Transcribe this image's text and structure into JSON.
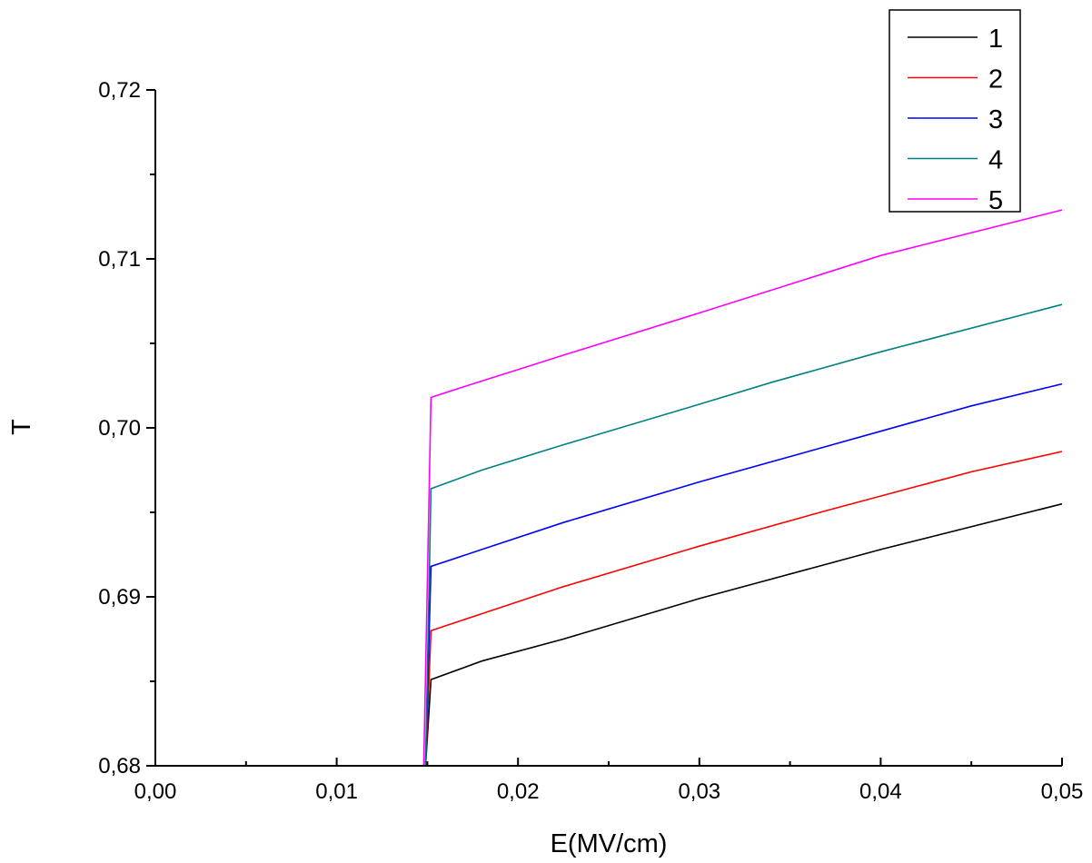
{
  "chart_data": {
    "type": "line",
    "title": "",
    "xlabel": "E(MV/cm)",
    "ylabel": "T",
    "xlim": [
      0.0,
      0.05
    ],
    "ylim": [
      0.68,
      0.72
    ],
    "x_ticks": [
      0.0,
      0.01,
      0.02,
      0.03,
      0.04,
      0.05
    ],
    "x_tick_labels": [
      "0,00",
      "0,01",
      "0,02",
      "0,03",
      "0,04",
      "0,05"
    ],
    "y_ticks": [
      0.68,
      0.69,
      0.7,
      0.71,
      0.72
    ],
    "y_tick_labels": [
      "0,68",
      "0,69",
      "0,70",
      "0,71",
      "0,72"
    ],
    "grid": false,
    "legend_position": "top-right",
    "series": [
      {
        "name": "1",
        "color": "#000000",
        "x": [
          0.0149,
          0.0152,
          0.018,
          0.0225,
          0.03,
          0.04,
          0.05
        ],
        "y": [
          0.68,
          0.6851,
          0.6862,
          0.6875,
          0.6899,
          0.6928,
          0.6955
        ]
      },
      {
        "name": "2",
        "color": "#ff0000",
        "x": [
          0.0149,
          0.0152,
          0.018,
          0.0225,
          0.03,
          0.037,
          0.045,
          0.05
        ],
        "y": [
          0.68,
          0.688,
          0.689,
          0.6906,
          0.693,
          0.6951,
          0.6974,
          0.6986
        ]
      },
      {
        "name": "3",
        "color": "#0000ff",
        "x": [
          0.0149,
          0.0152,
          0.018,
          0.0225,
          0.03,
          0.04,
          0.045,
          0.05
        ],
        "y": [
          0.68,
          0.6918,
          0.6928,
          0.6944,
          0.6968,
          0.6998,
          0.7013,
          0.7026
        ]
      },
      {
        "name": "4",
        "color": "#008080",
        "x": [
          0.0149,
          0.0152,
          0.018,
          0.0225,
          0.03,
          0.034,
          0.04,
          0.05
        ],
        "y": [
          0.68,
          0.6964,
          0.6975,
          0.699,
          0.7014,
          0.7027,
          0.7045,
          0.7073
        ]
      },
      {
        "name": "5",
        "color": "#ff00ff",
        "x": [
          0.0148,
          0.0152,
          0.0175,
          0.0225,
          0.03,
          0.04,
          0.05
        ],
        "y": [
          0.68,
          0.7018,
          0.7026,
          0.7043,
          0.7068,
          0.7102,
          0.7129
        ]
      }
    ]
  }
}
